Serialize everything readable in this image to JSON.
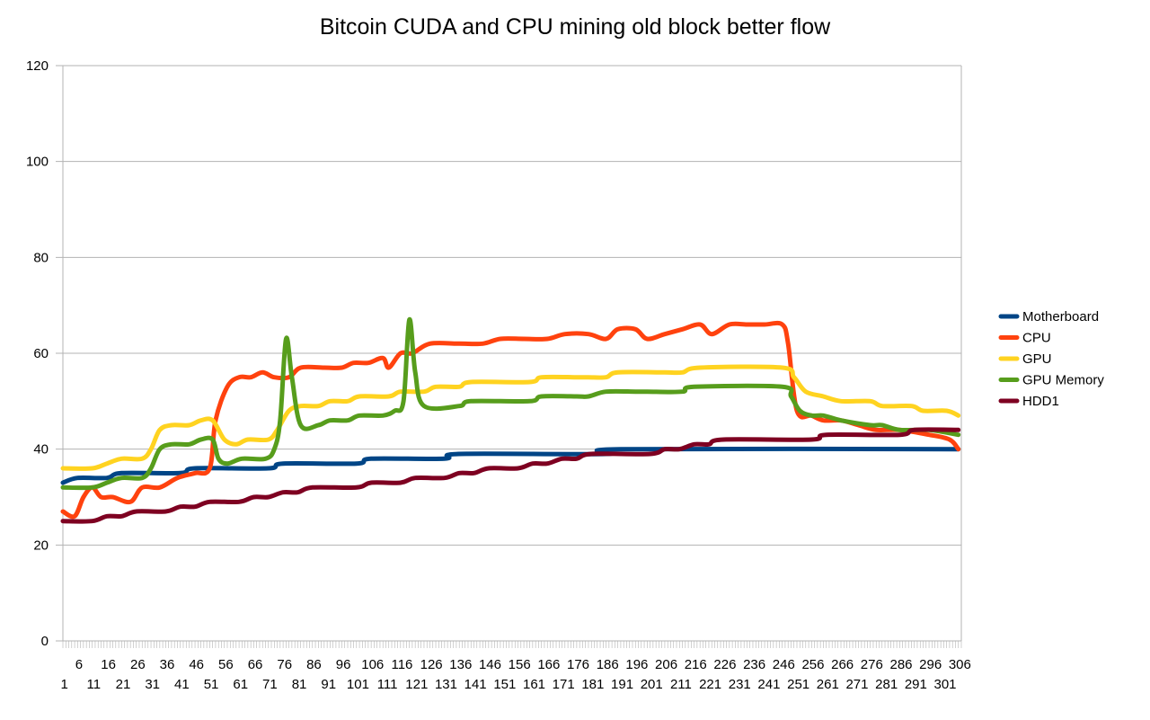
{
  "chart_data": {
    "type": "line",
    "title": "Bitcoin CUDA and CPU mining old block better flow",
    "xlabel": "",
    "ylabel": "",
    "ylim": [
      0,
      120
    ],
    "yticks": [
      0,
      20,
      40,
      60,
      80,
      100,
      120
    ],
    "xlim": [
      1,
      306
    ],
    "xticks_upper": [
      6,
      16,
      26,
      36,
      46,
      56,
      66,
      76,
      86,
      96,
      106,
      116,
      126,
      136,
      146,
      156,
      166,
      176,
      186,
      196,
      206,
      216,
      226,
      236,
      246,
      256,
      266,
      276,
      286,
      296,
      306
    ],
    "xticks_lower": [
      1,
      11,
      21,
      31,
      41,
      51,
      61,
      71,
      81,
      91,
      101,
      111,
      121,
      131,
      141,
      151,
      161,
      171,
      181,
      191,
      201,
      211,
      221,
      231,
      241,
      251,
      261,
      271,
      281,
      291,
      301
    ],
    "grid": true,
    "legend_position": "right",
    "series": [
      {
        "name": "Motherboard",
        "color": "#004586",
        "points": [
          [
            1,
            33
          ],
          [
            6,
            34
          ],
          [
            16,
            34
          ],
          [
            21,
            35
          ],
          [
            41,
            35
          ],
          [
            46,
            36
          ],
          [
            71,
            36
          ],
          [
            76,
            37
          ],
          [
            101,
            37
          ],
          [
            106,
            38
          ],
          [
            131,
            38
          ],
          [
            136,
            39
          ],
          [
            186,
            39
          ],
          [
            191,
            40
          ],
          [
            306,
            40
          ]
        ]
      },
      {
        "name": "CPU",
        "color": "#ff420e",
        "points": [
          [
            1,
            27
          ],
          [
            5,
            26
          ],
          [
            8,
            30
          ],
          [
            11,
            32
          ],
          [
            14,
            30
          ],
          [
            18,
            30
          ],
          [
            24,
            29
          ],
          [
            28,
            32
          ],
          [
            34,
            32
          ],
          [
            40,
            34
          ],
          [
            46,
            35
          ],
          [
            51,
            36
          ],
          [
            53,
            46
          ],
          [
            57,
            53
          ],
          [
            61,
            55
          ],
          [
            65,
            55
          ],
          [
            69,
            56
          ],
          [
            73,
            55
          ],
          [
            78,
            55
          ],
          [
            82,
            57
          ],
          [
            90,
            57
          ],
          [
            96,
            57
          ],
          [
            100,
            58
          ],
          [
            105,
            58
          ],
          [
            110,
            59
          ],
          [
            112,
            57
          ],
          [
            116,
            60
          ],
          [
            120,
            60
          ],
          [
            126,
            62
          ],
          [
            136,
            62
          ],
          [
            144,
            62
          ],
          [
            150,
            63
          ],
          [
            158,
            63
          ],
          [
            166,
            63
          ],
          [
            172,
            64
          ],
          [
            180,
            64
          ],
          [
            186,
            63
          ],
          [
            190,
            65
          ],
          [
            196,
            65
          ],
          [
            200,
            63
          ],
          [
            206,
            64
          ],
          [
            212,
            65
          ],
          [
            218,
            66
          ],
          [
            222,
            64
          ],
          [
            228,
            66
          ],
          [
            234,
            66
          ],
          [
            240,
            66
          ],
          [
            246,
            66
          ],
          [
            248,
            62
          ],
          [
            251,
            48
          ],
          [
            256,
            47
          ],
          [
            260,
            46
          ],
          [
            266,
            46
          ],
          [
            272,
            45
          ],
          [
            278,
            44
          ],
          [
            286,
            44
          ],
          [
            296,
            43
          ],
          [
            303,
            42
          ],
          [
            306,
            40
          ]
        ]
      },
      {
        "name": "GPU",
        "color": "#ffd320",
        "points": [
          [
            1,
            36
          ],
          [
            11,
            36
          ],
          [
            16,
            37
          ],
          [
            21,
            38
          ],
          [
            28,
            38
          ],
          [
            31,
            40
          ],
          [
            34,
            44
          ],
          [
            38,
            45
          ],
          [
            44,
            45
          ],
          [
            48,
            46
          ],
          [
            52,
            46
          ],
          [
            56,
            42
          ],
          [
            60,
            41
          ],
          [
            64,
            42
          ],
          [
            71,
            42
          ],
          [
            74,
            44
          ],
          [
            78,
            48
          ],
          [
            82,
            49
          ],
          [
            88,
            49
          ],
          [
            92,
            50
          ],
          [
            98,
            50
          ],
          [
            102,
            51
          ],
          [
            112,
            51
          ],
          [
            116,
            52
          ],
          [
            124,
            52
          ],
          [
            128,
            53
          ],
          [
            136,
            53
          ],
          [
            140,
            54
          ],
          [
            160,
            54
          ],
          [
            164,
            55
          ],
          [
            176,
            55
          ],
          [
            180,
            55
          ],
          [
            186,
            55
          ],
          [
            190,
            56
          ],
          [
            206,
            56
          ],
          [
            212,
            56
          ],
          [
            218,
            57
          ],
          [
            246,
            57
          ],
          [
            250,
            55
          ],
          [
            254,
            52
          ],
          [
            260,
            51
          ],
          [
            266,
            50
          ],
          [
            276,
            50
          ],
          [
            280,
            49
          ],
          [
            290,
            49
          ],
          [
            294,
            48
          ],
          [
            302,
            48
          ],
          [
            306,
            47
          ]
        ]
      },
      {
        "name": "GPU Memory",
        "color": "#579d1c",
        "points": [
          [
            1,
            32
          ],
          [
            11,
            32
          ],
          [
            16,
            33
          ],
          [
            21,
            34
          ],
          [
            28,
            34
          ],
          [
            31,
            36
          ],
          [
            34,
            40
          ],
          [
            38,
            41
          ],
          [
            44,
            41
          ],
          [
            48,
            42
          ],
          [
            52,
            42
          ],
          [
            54,
            38
          ],
          [
            57,
            37
          ],
          [
            62,
            38
          ],
          [
            70,
            38
          ],
          [
            73,
            40
          ],
          [
            75,
            46
          ],
          [
            77,
            63
          ],
          [
            79,
            55
          ],
          [
            82,
            45
          ],
          [
            88,
            45
          ],
          [
            92,
            46
          ],
          [
            98,
            46
          ],
          [
            102,
            47
          ],
          [
            110,
            47
          ],
          [
            114,
            48
          ],
          [
            117,
            50
          ],
          [
            119,
            67
          ],
          [
            121,
            56
          ],
          [
            124,
            49
          ],
          [
            136,
            49
          ],
          [
            140,
            50
          ],
          [
            160,
            50
          ],
          [
            164,
            51
          ],
          [
            176,
            51
          ],
          [
            180,
            51
          ],
          [
            186,
            52
          ],
          [
            196,
            52
          ],
          [
            200,
            52
          ],
          [
            212,
            52
          ],
          [
            216,
            53
          ],
          [
            246,
            53
          ],
          [
            249,
            51
          ],
          [
            252,
            48
          ],
          [
            256,
            47
          ],
          [
            260,
            47
          ],
          [
            266,
            46
          ],
          [
            276,
            45
          ],
          [
            280,
            45
          ],
          [
            286,
            44
          ],
          [
            296,
            44
          ],
          [
            306,
            43
          ]
        ]
      },
      {
        "name": "HDD1",
        "color": "#7e0021",
        "points": [
          [
            1,
            25
          ],
          [
            11,
            25
          ],
          [
            16,
            26
          ],
          [
            21,
            26
          ],
          [
            26,
            27
          ],
          [
            36,
            27
          ],
          [
            41,
            28
          ],
          [
            46,
            28
          ],
          [
            51,
            29
          ],
          [
            61,
            29
          ],
          [
            66,
            30
          ],
          [
            71,
            30
          ],
          [
            76,
            31
          ],
          [
            81,
            31
          ],
          [
            86,
            32
          ],
          [
            101,
            32
          ],
          [
            106,
            33
          ],
          [
            116,
            33
          ],
          [
            121,
            34
          ],
          [
            131,
            34
          ],
          [
            136,
            35
          ],
          [
            141,
            35
          ],
          [
            146,
            36
          ],
          [
            156,
            36
          ],
          [
            161,
            37
          ],
          [
            166,
            37
          ],
          [
            171,
            38
          ],
          [
            176,
            38
          ],
          [
            181,
            39
          ],
          [
            201,
            39
          ],
          [
            206,
            40
          ],
          [
            211,
            40
          ],
          [
            216,
            41
          ],
          [
            221,
            41
          ],
          [
            226,
            42
          ],
          [
            256,
            42
          ],
          [
            261,
            43
          ],
          [
            286,
            43
          ],
          [
            291,
            44
          ],
          [
            306,
            44
          ]
        ]
      }
    ]
  }
}
